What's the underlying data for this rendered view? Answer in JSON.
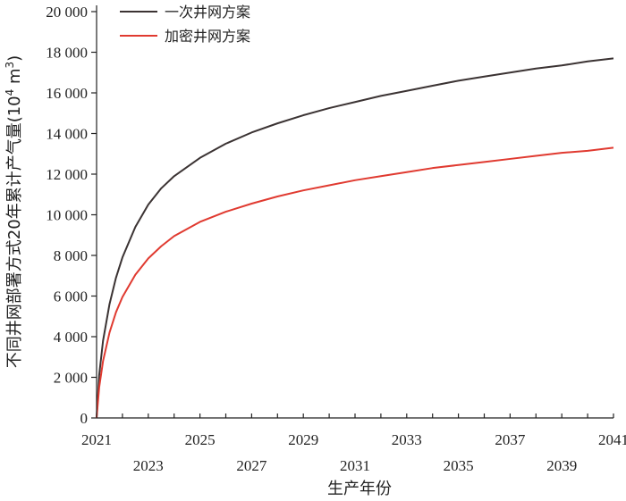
{
  "chart_data": {
    "type": "line",
    "xlabel": "生产年份",
    "ylabel_main": "不同井网部署方式20年累计产气量(10",
    "ylabel_sup1": "4",
    "ylabel_mid": " m",
    "ylabel_sup2": "3",
    "ylabel_end": ")",
    "xlim": [
      2021,
      2041
    ],
    "ylim": [
      0,
      20000
    ],
    "x_ticks_upper": [
      {
        "value": 2021,
        "label": "2021"
      },
      {
        "value": 2025,
        "label": "2025"
      },
      {
        "value": 2029,
        "label": "2029"
      },
      {
        "value": 2033,
        "label": "2033"
      },
      {
        "value": 2037,
        "label": "2037"
      },
      {
        "value": 2041,
        "label": "2041"
      }
    ],
    "x_ticks_lower": [
      {
        "value": 2023,
        "label": "2023"
      },
      {
        "value": 2027,
        "label": "2027"
      },
      {
        "value": 2031,
        "label": "2031"
      },
      {
        "value": 2035,
        "label": "2035"
      },
      {
        "value": 2039,
        "label": "2039"
      }
    ],
    "y_ticks": [
      {
        "value": 0,
        "label": "0"
      },
      {
        "value": 2000,
        "label": "2 000"
      },
      {
        "value": 4000,
        "label": "4 000"
      },
      {
        "value": 6000,
        "label": "6 000"
      },
      {
        "value": 8000,
        "label": "8 000"
      },
      {
        "value": 10000,
        "label": "10 000"
      },
      {
        "value": 12000,
        "label": "12 000"
      },
      {
        "value": 14000,
        "label": "14 000"
      },
      {
        "value": 16000,
        "label": "16 000"
      },
      {
        "value": 18000,
        "label": "18 000"
      },
      {
        "value": 20000,
        "label": "20 000"
      }
    ],
    "grid": false,
    "legend_position": "top-left",
    "series": [
      {
        "name": "一次井网方案",
        "color": "#3b3333",
        "x": [
          2021,
          2021.1,
          2021.25,
          2021.5,
          2021.75,
          2022,
          2022.5,
          2023,
          2023.5,
          2024,
          2025,
          2026,
          2027,
          2028,
          2029,
          2030,
          2031,
          2032,
          2033,
          2034,
          2035,
          2036,
          2037,
          2038,
          2039,
          2040,
          2041
        ],
        "values": [
          0,
          2100,
          3800,
          5600,
          6900,
          7900,
          9400,
          10500,
          11300,
          11900,
          12800,
          13500,
          14050,
          14500,
          14900,
          15250,
          15550,
          15850,
          16100,
          16350,
          16600,
          16800,
          17000,
          17200,
          17350,
          17550,
          17700
        ]
      },
      {
        "name": "加密井网方案",
        "color": "#e03a30",
        "x": [
          2021,
          2021.1,
          2021.25,
          2021.5,
          2021.75,
          2022,
          2022.5,
          2023,
          2023.5,
          2024,
          2025,
          2026,
          2027,
          2028,
          2029,
          2030,
          2031,
          2032,
          2033,
          2034,
          2035,
          2036,
          2037,
          2038,
          2039,
          2040,
          2041
        ],
        "values": [
          0,
          1500,
          2800,
          4200,
          5200,
          5950,
          7050,
          7850,
          8450,
          8950,
          9650,
          10150,
          10550,
          10900,
          11200,
          11450,
          11700,
          11900,
          12100,
          12300,
          12450,
          12600,
          12750,
          12900,
          13050,
          13150,
          13300
        ]
      }
    ]
  }
}
